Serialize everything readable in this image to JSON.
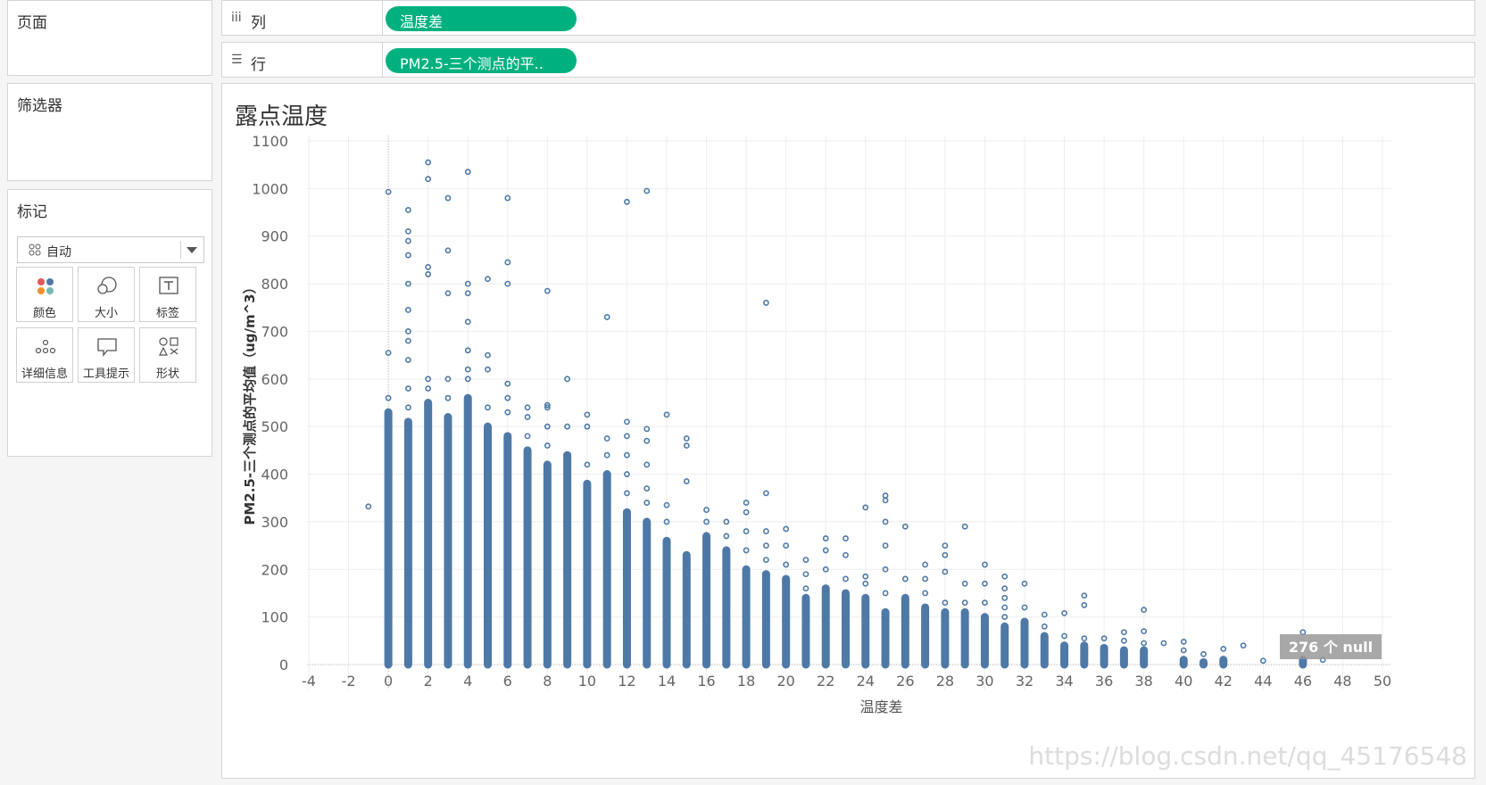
{
  "sidebar": {
    "pages_title": "页面",
    "filters_title": "筛选器",
    "marks_title": "标记",
    "mark_type": "自动",
    "mark_buttons": [
      {
        "label": "颜色",
        "icon": "color-icon"
      },
      {
        "label": "大小",
        "icon": "size-icon"
      },
      {
        "label": "标签",
        "icon": "label-icon"
      },
      {
        "label": "详细信息",
        "icon": "detail-icon"
      },
      {
        "label": "工具提示",
        "icon": "tooltip-icon"
      },
      {
        "label": "形状",
        "icon": "shape-icon"
      }
    ]
  },
  "shelves": {
    "columns_label": "列",
    "columns_pill": "温度差",
    "rows_label": "行",
    "rows_pill": "PM2.5-三个测点的平.."
  },
  "view": {
    "title": "露点温度",
    "null_badge": "276 个 null",
    "watermark": "https://blog.csdn.net/qq_45176548"
  },
  "colors": {
    "pill": "#00b180",
    "mark": "#4e79a7"
  },
  "chart_data": {
    "type": "scatter",
    "title": "露点温度",
    "xlabel": "温度差",
    "ylabel": "PM2.5-三个测点的平均值（ug/m^3）",
    "xlim": [
      -4,
      50
    ],
    "ylim": [
      0,
      1100
    ],
    "x_ticks": [
      -4,
      -2,
      0,
      2,
      4,
      6,
      8,
      10,
      12,
      14,
      16,
      18,
      20,
      22,
      24,
      26,
      28,
      30,
      32,
      34,
      36,
      38,
      40,
      42,
      44,
      46,
      48,
      50
    ],
    "y_ticks": [
      0,
      100,
      200,
      300,
      400,
      500,
      600,
      700,
      800,
      900,
      1000,
      1100
    ],
    "marker": "open-circle",
    "grid": true,
    "columns": [
      {
        "x": -1,
        "dense_max": 0,
        "outliers": [
          332
        ]
      },
      {
        "x": 0,
        "dense_max": 530,
        "outliers": [
          560,
          655,
          993
        ]
      },
      {
        "x": 1,
        "dense_max": 510,
        "outliers": [
          540,
          580,
          640,
          680,
          700,
          745,
          800,
          860,
          890,
          910,
          955
        ]
      },
      {
        "x": 2,
        "dense_max": 550,
        "outliers": [
          580,
          600,
          820,
          835,
          1020,
          1055
        ]
      },
      {
        "x": 3,
        "dense_max": 520,
        "outliers": [
          560,
          600,
          780,
          870,
          980
        ]
      },
      {
        "x": 4,
        "dense_max": 560,
        "outliers": [
          600,
          620,
          660,
          720,
          780,
          800,
          1035
        ]
      },
      {
        "x": 5,
        "dense_max": 500,
        "outliers": [
          540,
          620,
          650,
          810
        ]
      },
      {
        "x": 6,
        "dense_max": 480,
        "outliers": [
          530,
          560,
          590,
          800,
          845,
          980
        ]
      },
      {
        "x": 7,
        "dense_max": 450,
        "outliers": [
          480,
          520,
          540
        ]
      },
      {
        "x": 8,
        "dense_max": 420,
        "outliers": [
          460,
          500,
          540,
          545,
          785
        ]
      },
      {
        "x": 9,
        "dense_max": 440,
        "outliers": [
          500,
          600
        ]
      },
      {
        "x": 10,
        "dense_max": 380,
        "outliers": [
          420,
          500,
          525
        ]
      },
      {
        "x": 11,
        "dense_max": 400,
        "outliers": [
          440,
          475,
          730
        ]
      },
      {
        "x": 12,
        "dense_max": 320,
        "outliers": [
          360,
          400,
          440,
          480,
          510,
          972
        ]
      },
      {
        "x": 13,
        "dense_max": 300,
        "outliers": [
          340,
          370,
          420,
          470,
          495,
          995
        ]
      },
      {
        "x": 14,
        "dense_max": 260,
        "outliers": [
          300,
          335,
          525
        ]
      },
      {
        "x": 15,
        "dense_max": 230,
        "outliers": [
          385,
          460,
          475
        ]
      },
      {
        "x": 16,
        "dense_max": 270,
        "outliers": [
          300,
          325
        ]
      },
      {
        "x": 17,
        "dense_max": 240,
        "outliers": [
          270,
          300
        ]
      },
      {
        "x": 18,
        "dense_max": 200,
        "outliers": [
          240,
          280,
          320,
          340
        ]
      },
      {
        "x": 19,
        "dense_max": 190,
        "outliers": [
          220,
          250,
          280,
          360,
          760
        ]
      },
      {
        "x": 20,
        "dense_max": 180,
        "outliers": [
          210,
          250,
          285
        ]
      },
      {
        "x": 21,
        "dense_max": 140,
        "outliers": [
          160,
          190,
          220
        ]
      },
      {
        "x": 22,
        "dense_max": 160,
        "outliers": [
          200,
          240,
          265
        ]
      },
      {
        "x": 23,
        "dense_max": 150,
        "outliers": [
          180,
          230,
          265
        ]
      },
      {
        "x": 24,
        "dense_max": 140,
        "outliers": [
          170,
          185,
          330
        ]
      },
      {
        "x": 25,
        "dense_max": 110,
        "outliers": [
          150,
          200,
          250,
          300,
          345,
          355
        ]
      },
      {
        "x": 26,
        "dense_max": 140,
        "outliers": [
          180,
          290
        ]
      },
      {
        "x": 27,
        "dense_max": 120,
        "outliers": [
          150,
          180,
          210
        ]
      },
      {
        "x": 28,
        "dense_max": 110,
        "outliers": [
          130,
          195,
          230,
          250
        ]
      },
      {
        "x": 29,
        "dense_max": 110,
        "outliers": [
          130,
          170,
          290
        ]
      },
      {
        "x": 30,
        "dense_max": 100,
        "outliers": [
          130,
          170,
          210
        ]
      },
      {
        "x": 31,
        "dense_max": 80,
        "outliers": [
          100,
          120,
          140,
          160,
          185
        ]
      },
      {
        "x": 32,
        "dense_max": 90,
        "outliers": [
          120,
          170
        ]
      },
      {
        "x": 33,
        "dense_max": 60,
        "outliers": [
          80,
          105
        ]
      },
      {
        "x": 34,
        "dense_max": 40,
        "outliers": [
          60,
          108
        ]
      },
      {
        "x": 35,
        "dense_max": 40,
        "outliers": [
          55,
          125,
          145
        ]
      },
      {
        "x": 36,
        "dense_max": 35,
        "outliers": [
          55
        ]
      },
      {
        "x": 37,
        "dense_max": 30,
        "outliers": [
          50,
          68
        ]
      },
      {
        "x": 38,
        "dense_max": 30,
        "outliers": [
          45,
          70,
          115
        ]
      },
      {
        "x": 39,
        "dense_max": 0,
        "outliers": [
          45
        ]
      },
      {
        "x": 40,
        "dense_max": 10,
        "outliers": [
          30,
          48
        ]
      },
      {
        "x": 41,
        "dense_max": 5,
        "outliers": [
          22
        ]
      },
      {
        "x": 42,
        "dense_max": 10,
        "outliers": [
          33
        ]
      },
      {
        "x": 43,
        "dense_max": 0,
        "outliers": [
          40
        ]
      },
      {
        "x": 44,
        "dense_max": 0,
        "outliers": [
          8
        ]
      },
      {
        "x": 46,
        "dense_max": 10,
        "outliers": [
          68
        ]
      },
      {
        "x": 47,
        "dense_max": 0,
        "outliers": [
          10
        ]
      }
    ]
  }
}
